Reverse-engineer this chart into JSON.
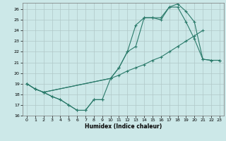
{
  "xlabel": "Humidex (Indice chaleur)",
  "xlim": [
    -0.5,
    23.5
  ],
  "ylim": [
    16,
    26.6
  ],
  "xticks": [
    0,
    1,
    2,
    3,
    4,
    5,
    6,
    7,
    8,
    9,
    10,
    11,
    12,
    13,
    14,
    15,
    16,
    17,
    18,
    19,
    20,
    21,
    22,
    23
  ],
  "yticks": [
    16,
    17,
    18,
    19,
    20,
    21,
    22,
    23,
    24,
    25,
    26
  ],
  "background_color": "#cce8e8",
  "grid_color": "#b0c8c8",
  "line_color": "#2a7a6a",
  "series": [
    {
      "x": [
        0,
        1,
        2,
        3,
        4,
        5,
        6,
        7,
        8,
        9
      ],
      "y": [
        19.0,
        18.5,
        18.2,
        17.8,
        17.5,
        17.0,
        16.5,
        16.5,
        17.5,
        17.5
      ]
    },
    {
      "x": [
        0,
        1,
        2,
        3,
        4,
        5,
        6,
        7,
        8,
        9,
        10,
        11,
        12,
        13,
        14,
        15,
        16,
        17,
        18,
        19,
        20,
        21,
        22,
        23
      ],
      "y": [
        19.0,
        18.5,
        18.2,
        17.8,
        17.5,
        17.0,
        16.5,
        16.5,
        17.5,
        17.5,
        19.5,
        20.5,
        22.0,
        22.5,
        25.2,
        25.2,
        25.0,
        26.2,
        26.2,
        24.8,
        23.2,
        21.3,
        21.2,
        21.2
      ]
    },
    {
      "x": [
        0,
        1,
        2,
        10,
        11,
        12,
        13,
        14,
        15,
        16,
        17,
        18,
        19,
        20,
        21
      ],
      "y": [
        19.0,
        18.5,
        18.2,
        19.5,
        19.8,
        20.2,
        20.5,
        20.8,
        21.2,
        21.5,
        22.0,
        22.5,
        23.0,
        23.5,
        24.0
      ]
    },
    {
      "x": [
        2,
        10,
        11,
        12,
        13,
        14,
        15,
        16,
        17,
        18,
        19,
        20,
        21,
        22,
        23
      ],
      "y": [
        18.2,
        19.5,
        20.5,
        22.0,
        24.5,
        25.2,
        25.2,
        25.2,
        26.2,
        26.5,
        25.8,
        24.8,
        21.3,
        21.2,
        21.2
      ]
    }
  ]
}
